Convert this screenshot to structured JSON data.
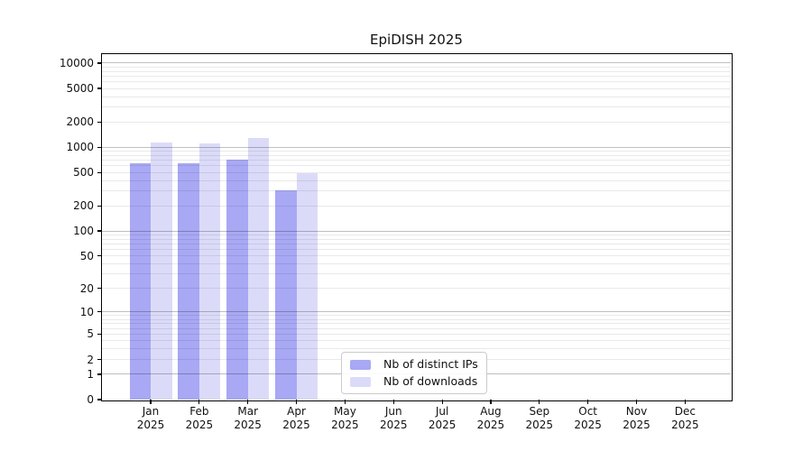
{
  "title": "EpiDISH 2025",
  "chart_data": {
    "type": "bar",
    "title": "EpiDISH 2025",
    "year_label": "2025",
    "categories": [
      "Jan",
      "Feb",
      "Mar",
      "Apr",
      "May",
      "Jun",
      "Jul",
      "Aug",
      "Sep",
      "Oct",
      "Nov",
      "Dec"
    ],
    "series": [
      {
        "name": "Nb of distinct IPs",
        "color": "#a8a8f4",
        "values": [
          640,
          640,
          715,
          307,
          0,
          0,
          0,
          0,
          0,
          0,
          0,
          0
        ]
      },
      {
        "name": "Nb of downloads",
        "color": "#dbdbf9",
        "values": [
          1150,
          1110,
          1280,
          495,
          0,
          0,
          0,
          0,
          0,
          0,
          0,
          0
        ]
      }
    ],
    "yticks": [
      0,
      1,
      2,
      5,
      10,
      20,
      50,
      100,
      200,
      500,
      1000,
      2000,
      5000,
      10000
    ],
    "yscale": "log10(value+1)",
    "ylim_transformed": [
      0,
      4.107
    ],
    "grid": "horizontal, log minor + major lines drawn over bars",
    "legend_position": "lower center inside plot"
  }
}
